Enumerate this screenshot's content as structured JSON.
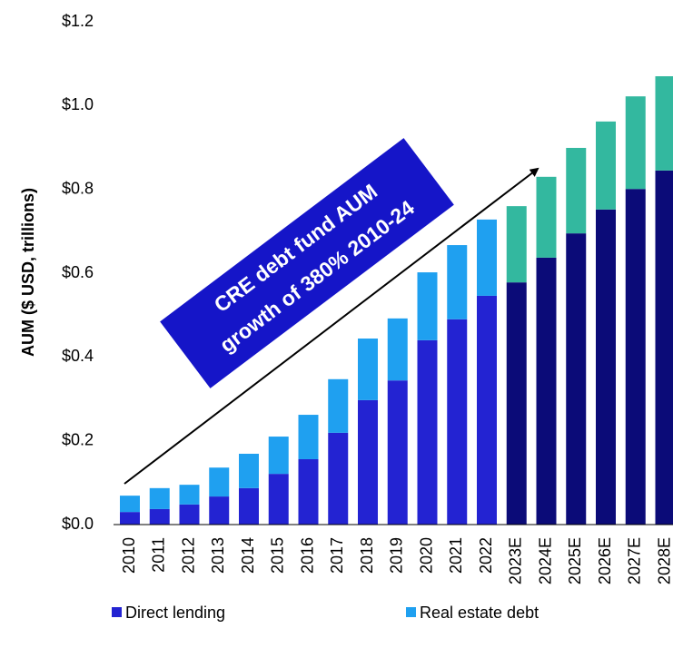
{
  "chart_data": {
    "type": "stacked_bar",
    "ylabel": "AUM ($ USD, trillions)",
    "annotation": [
      "CRE debt fund AUM",
      "growth of 380% 2010-24"
    ],
    "categories": [
      "2010",
      "2011",
      "2012",
      "2013",
      "2014",
      "2015",
      "2016",
      "2017",
      "2018",
      "2019",
      "2020",
      "2021",
      "2022",
      "2023E",
      "2024E",
      "2025E",
      "2026E",
      "2027E",
      "2028E"
    ],
    "series": [
      {
        "name": "Direct lending",
        "color": "#2323d2",
        "colors": [
          "#2323d2",
          "#2323d2",
          "#2323d2",
          "#2323d2",
          "#2323d2",
          "#2323d2",
          "#2323d2",
          "#2323d2",
          "#2323d2",
          "#2323d2",
          "#2323d2",
          "#2323d2",
          "#2323d2",
          "#0b0b78",
          "#0b0b78",
          "#0b0b78",
          "#0b0b78",
          "#0b0b78",
          "#0b0b78"
        ],
        "values": [
          0.03,
          0.037,
          0.048,
          0.067,
          0.087,
          0.121,
          0.156,
          0.219,
          0.297,
          0.344,
          0.44,
          0.49,
          0.546,
          0.578,
          0.637,
          0.695,
          0.752,
          0.801,
          0.845
        ]
      },
      {
        "name": "Real estate debt",
        "color": "#1fa0f0",
        "colors": [
          "#1fa0f0",
          "#1fa0f0",
          "#1fa0f0",
          "#1fa0f0",
          "#1fa0f0",
          "#1fa0f0",
          "#1fa0f0",
          "#1fa0f0",
          "#1fa0f0",
          "#1fa0f0",
          "#1fa0f0",
          "#1fa0f0",
          "#1fa0f0",
          "#33b89f",
          "#33b89f",
          "#33b89f",
          "#33b89f",
          "#33b89f",
          "#33b89f"
        ],
        "values": [
          0.039,
          0.05,
          0.047,
          0.069,
          0.082,
          0.089,
          0.106,
          0.128,
          0.147,
          0.148,
          0.162,
          0.177,
          0.182,
          0.182,
          0.193,
          0.204,
          0.21,
          0.221,
          0.225
        ]
      }
    ],
    "ylim": [
      0,
      1.2
    ],
    "yticks": [
      {
        "value": 0,
        "label": "$0.0"
      },
      {
        "value": 0.2,
        "label": "$0.2"
      },
      {
        "value": 0.4,
        "label": "$0.4"
      },
      {
        "value": 0.6,
        "label": "$0.6"
      },
      {
        "value": 0.8,
        "label": "$0.8"
      },
      {
        "value": 1.0,
        "label": "$1.0"
      },
      {
        "value": 1.2,
        "label": "$1.2"
      }
    ],
    "grid": false
  }
}
